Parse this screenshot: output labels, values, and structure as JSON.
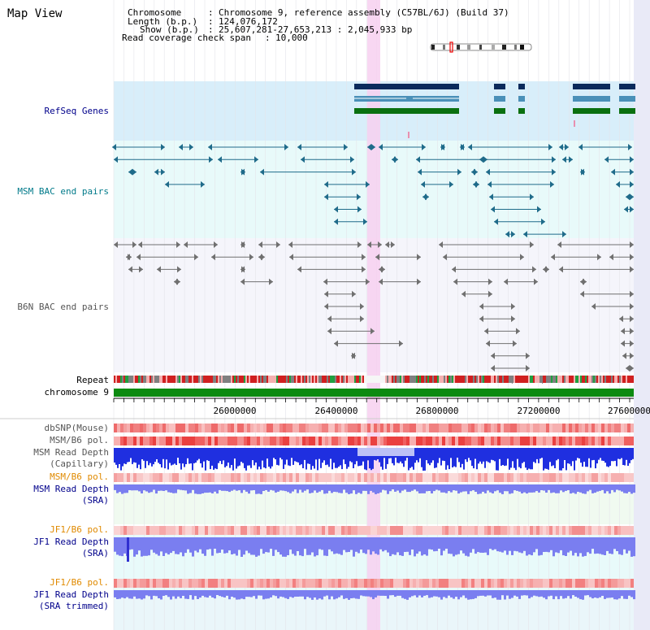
{
  "title": "Map View",
  "header": {
    "chromosome_key": "Chromosome",
    "chromosome_val": "Chromosome 9, reference assembly (C57BL/6J) (Build 37)",
    "length_key": "Length (b.p.)",
    "length_val": "124,076,172",
    "show_key": "Show (b.p.)",
    "show_val": "25,607,281-27,653,213 : 2,045,933 bp",
    "coverage_key": "Read coverage check span",
    "coverage_val": "10,000"
  },
  "tracks": {
    "refseq": "RefSeq Genes",
    "msm_bac": "MSM BAC end pairs",
    "b6n_bac": "B6N BAC end pairs",
    "repeat": "Repeat",
    "chromosome": "chromosome 9",
    "dbsnp": "dbSNP(Mouse)",
    "msm_b6_pol": "MSM/B6 pol.",
    "msm_depth_cap_1": "MSM Read Depth",
    "msm_depth_cap_2": "(Capillary)",
    "msm_b6_pol2": "MSM/B6 pol.",
    "msm_depth_sra_1": "MSM Read Depth",
    "msm_depth_sra_2": "(SRA)",
    "jf1_b6_pol": "JF1/B6 pol.",
    "jf1_depth_sra_1": "JF1 Read Depth",
    "jf1_depth_sra_2": "(SRA)",
    "jf1_b6_pol2": "JF1/B6 pol.",
    "jf1_depth_trim_1": "JF1 Read Depth",
    "jf1_depth_trim_2": "(SRA trimmed)"
  },
  "axis": {
    "ticks": [
      "26000000",
      "26400000",
      "26800000",
      "27200000",
      "27600000"
    ],
    "range": [
      25607281,
      27653213
    ]
  },
  "colors": {
    "refseq_bg": "#d8eefa",
    "msm_bg": "#e8fafa",
    "b6n_bg": "#f5f5fb",
    "highlight": "#f7d0f0",
    "gene_dark": "#0b2a5c",
    "gene_mid": "#4a90b8",
    "gene_green": "#0a7010",
    "msm_pair": "#1f6b8a",
    "b6n_pair": "#707070",
    "depth_blue": "#1f2fe0",
    "depth_light": "#7a7ef0",
    "label_blue": "#00008b",
    "label_orange": "#e08a00",
    "label_teal": "#007a8a"
  }
}
